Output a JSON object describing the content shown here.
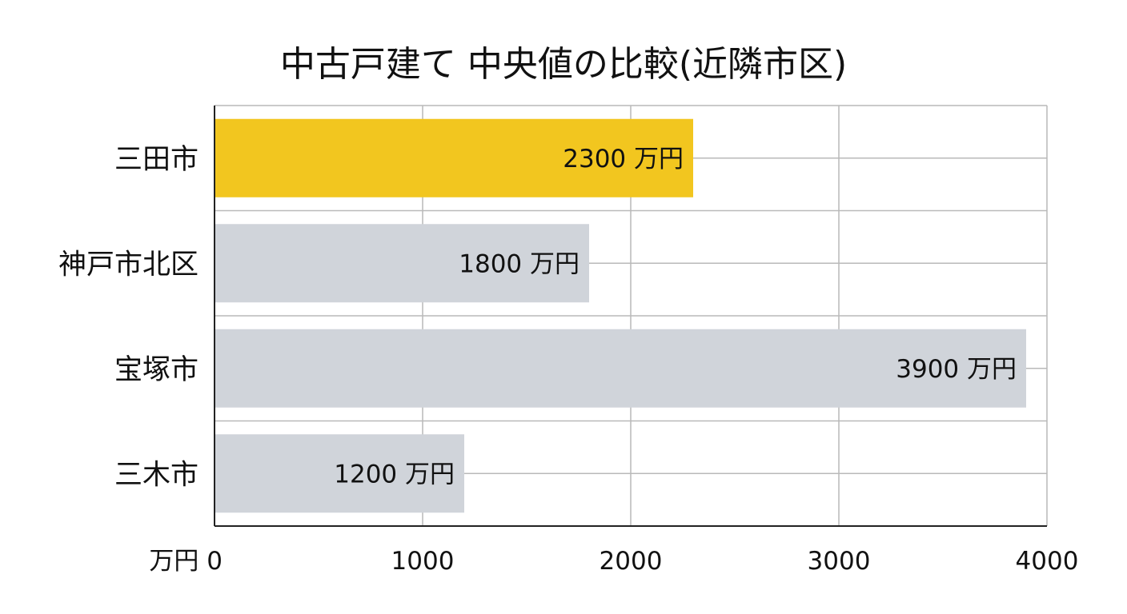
{
  "chart_data": {
    "type": "bar",
    "orientation": "horizontal",
    "title": "中古戸建て 中央値の比較(近隣市区)",
    "xlabel": "",
    "ylabel": "",
    "categories": [
      "三田市",
      "神戸市北区",
      "宝塚市",
      "三木市"
    ],
    "series": [
      {
        "values": [
          2300,
          1800,
          3900,
          1200
        ],
        "data_labels": [
          "2300 万円",
          "1800 万円",
          "3900 万円",
          "1200 万円"
        ]
      }
    ],
    "highlight_index": 0,
    "xlim": [
      0,
      4000
    ],
    "x_ticks": [
      0,
      1000,
      2000,
      3000,
      4000
    ],
    "x_tick_labels": [
      "万円 0",
      "1000",
      "2000",
      "3000",
      "4000"
    ],
    "grid": true,
    "legend": "none",
    "colors": {
      "highlight": "#f2c61f",
      "default": "#d0d4da",
      "grid": "#b9b9b9",
      "axis": "#222222",
      "text": "#111111"
    }
  }
}
